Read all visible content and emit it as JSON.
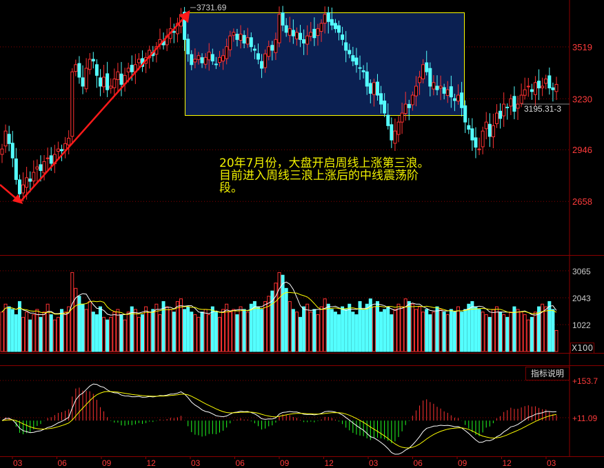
{
  "chart_data": {
    "type": "candlestick",
    "period": "weekly",
    "x_tick_labels": [
      "03",
      "06",
      "09",
      "12",
      "03",
      "06",
      "09",
      "12",
      "03",
      "06",
      "09",
      "12",
      "03"
    ],
    "price_axis": {
      "ticks": [
        3519,
        3230,
        2946,
        2658
      ],
      "ylim": [
        2378,
        3780
      ]
    },
    "closes": [
      2950,
      3050,
      2980,
      2900,
      2780,
      2700,
      2750,
      2790,
      2770,
      2820,
      2850,
      2830,
      2880,
      2900,
      2870,
      2920,
      2950,
      2940,
      2980,
      3010,
      3380,
      3420,
      3350,
      3300,
      3400,
      3450,
      3440,
      3360,
      3300,
      3350,
      3280,
      3300,
      3340,
      3380,
      3310,
      3360,
      3400,
      3380,
      3420,
      3450,
      3410,
      3460,
      3500,
      3470,
      3520,
      3560,
      3530,
      3580,
      3620,
      3600,
      3650,
      3700,
      3560,
      3480,
      3420,
      3450,
      3470,
      3430,
      3460,
      3490,
      3440,
      3420,
      3460,
      3470,
      3520,
      3580,
      3600,
      3560,
      3590,
      3540,
      3570,
      3520,
      3500,
      3450,
      3400,
      3480,
      3520,
      3500,
      3560,
      3700,
      3640,
      3600,
      3620,
      3580,
      3600,
      3560,
      3540,
      3580,
      3600,
      3570,
      3620,
      3650,
      3700,
      3660,
      3640,
      3620,
      3600,
      3560,
      3500,
      3480,
      3440,
      3420,
      3400,
      3380,
      3300,
      3260,
      3320,
      3250,
      3200,
      3150,
      3080,
      3000,
      3050,
      3100,
      3150,
      3200,
      3180,
      3250,
      3300,
      3350,
      3420,
      3380,
      3300,
      3320,
      3280,
      3300,
      3260,
      3280,
      3240,
      3220,
      3250,
      3180,
      3100,
      3060,
      3000,
      2960,
      2950,
      3050,
      3100,
      3020,
      3080,
      3150,
      3120,
      3200,
      3180,
      3230,
      3160,
      3200,
      3250,
      3280,
      3300,
      3270,
      3320,
      3290,
      3300,
      3340,
      3290,
      3280,
      3310
    ],
    "volumes": [
      1500,
      1800,
      1700,
      1600,
      1400,
      1900,
      1300,
      1500,
      1200,
      1400,
      1600,
      1300,
      1500,
      1800,
      1400,
      1200,
      1300,
      1600,
      1500,
      1700,
      3000,
      2400,
      2100,
      1800,
      1600,
      1900,
      1500,
      1400,
      1700,
      1300,
      1200,
      1300,
      1500,
      1600,
      1400,
      1200,
      1500,
      1700,
      1600,
      1300,
      1400,
      1700,
      1500,
      1600,
      1800,
      1400,
      1900,
      1700,
      1600,
      1500,
      1900,
      2000,
      1600,
      1700,
      1500,
      1400,
      1300,
      1500,
      1600,
      1400,
      1700,
      1500,
      1300,
      1600,
      1800,
      1500,
      1600,
      1400,
      1700,
      1600,
      1500,
      1800,
      1900,
      1700,
      1600,
      1900,
      2100,
      2300,
      2600,
      3000,
      2900,
      2400,
      1900,
      1600,
      1500,
      1300,
      1700,
      1800,
      1500,
      1600,
      1400,
      1700,
      2000,
      1800,
      1600,
      1500,
      1400,
      1700,
      1600,
      1800,
      1500,
      1400,
      1900,
      1600,
      1800,
      2000,
      1700,
      1900,
      1500,
      1600,
      1700,
      1400,
      1600,
      1800,
      1700,
      2000,
      1900,
      1800,
      1600,
      1700,
      1500,
      1600,
      1400,
      1500,
      1700,
      1600,
      1500,
      1400,
      1600,
      1500,
      1700,
      1500,
      1600,
      1800,
      1900,
      1700,
      1600,
      1500,
      1400,
      1300,
      1600,
      1700,
      1500,
      1400,
      1300,
      1500,
      1700,
      1600,
      1500,
      1400,
      1200,
      1300,
      1500,
      1700,
      1800,
      1700,
      1900,
      1600,
      800
    ],
    "volume_axis": {
      "ticks": [
        3065,
        2043,
        1022
      ],
      "unit": "X100"
    },
    "macd_axis": {
      "ticks": [
        "+153.7",
        "+11.09"
      ]
    },
    "high_label": "3731.69",
    "current_label": "3195.31-3",
    "colors": {
      "up": "#ff3232",
      "down": "#54ffff",
      "ma_fast": "#ffffff",
      "ma_slow": "#ffff00",
      "box_fill": "#0b2052",
      "box_border": "#ffff00",
      "arrow": "#ff1a1a",
      "grid": "#8b0000"
    }
  },
  "annotation": "20年7月份，大盘开启周线上涨第三浪。目前进入周线三浪上涨后的中线震荡阶段。",
  "indicator_button": "指标说明"
}
